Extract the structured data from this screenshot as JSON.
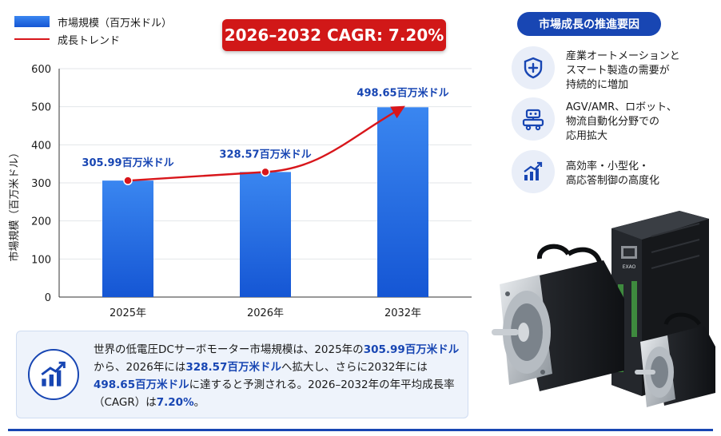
{
  "legend": {
    "bar_label": "市場規模（百万米ドル）",
    "line_label": "成長トレンド"
  },
  "cagr_badge": "2026–2032 CAGR: 7.20%",
  "chart_data": {
    "type": "bar",
    "categories": [
      "2025年",
      "2026年",
      "2032年"
    ],
    "values": [
      305.99,
      328.57,
      498.65
    ],
    "data_labels": [
      "305.99百万米ドル",
      "328.57百万米ドル",
      "498.65百万米ドル"
    ],
    "series": [
      {
        "name": "市場規模（百万米ドル）",
        "type": "bar",
        "values": [
          305.99,
          328.57,
          498.65
        ]
      },
      {
        "name": "成長トレンド",
        "type": "line",
        "values": [
          305.99,
          328.57,
          498.65
        ]
      }
    ],
    "ylabel": "市場規模（百万米ドル）",
    "ylim": [
      0,
      600
    ],
    "yticks": [
      0,
      100,
      200,
      300,
      400,
      500,
      600
    ],
    "grid": true,
    "legend_position": "top-left",
    "colors": {
      "bar_top": "#3a86f0",
      "bar_bottom": "#1556d4",
      "line": "#d8161b",
      "label": "#1846b3"
    }
  },
  "drivers": {
    "title": "市場成長の推進要因",
    "items": [
      {
        "icon": "shield-plus-icon",
        "lines": [
          "産業オートメーションと",
          "スマート製造の需要が",
          "持続的に増加"
        ]
      },
      {
        "icon": "robot-agv-icon",
        "lines": [
          "AGV/AMR、ロボット、",
          "物流自動化分野での",
          "応用拡大"
        ]
      },
      {
        "icon": "growth-chart-icon",
        "lines": [
          "高効率・小型化・",
          "高応答制御の高度化"
        ]
      }
    ]
  },
  "summary": {
    "icon": "growth-chart-icon",
    "parts": [
      {
        "text": "世界の低電圧DCサーボモーター市場規模は、2025年の",
        "hl": false
      },
      {
        "text": "305.99百万米ドル",
        "hl": true
      },
      {
        "text": "から、2026年には",
        "hl": false
      },
      {
        "text": "328.57百万米ドル",
        "hl": true
      },
      {
        "text": "へ拡大し、さらに2032年には",
        "hl": false
      },
      {
        "text": "498.65百万米ドル",
        "hl": true
      },
      {
        "text": "に達すると予測される。2026–2032年の年平均成長率（CAGR）は",
        "hl": false
      },
      {
        "text": "7.20%",
        "hl": true
      },
      {
        "text": "。",
        "hl": false
      }
    ]
  },
  "product": {
    "icon": "servo-motor-and-drive-icon",
    "drive_label": "EXAO"
  }
}
